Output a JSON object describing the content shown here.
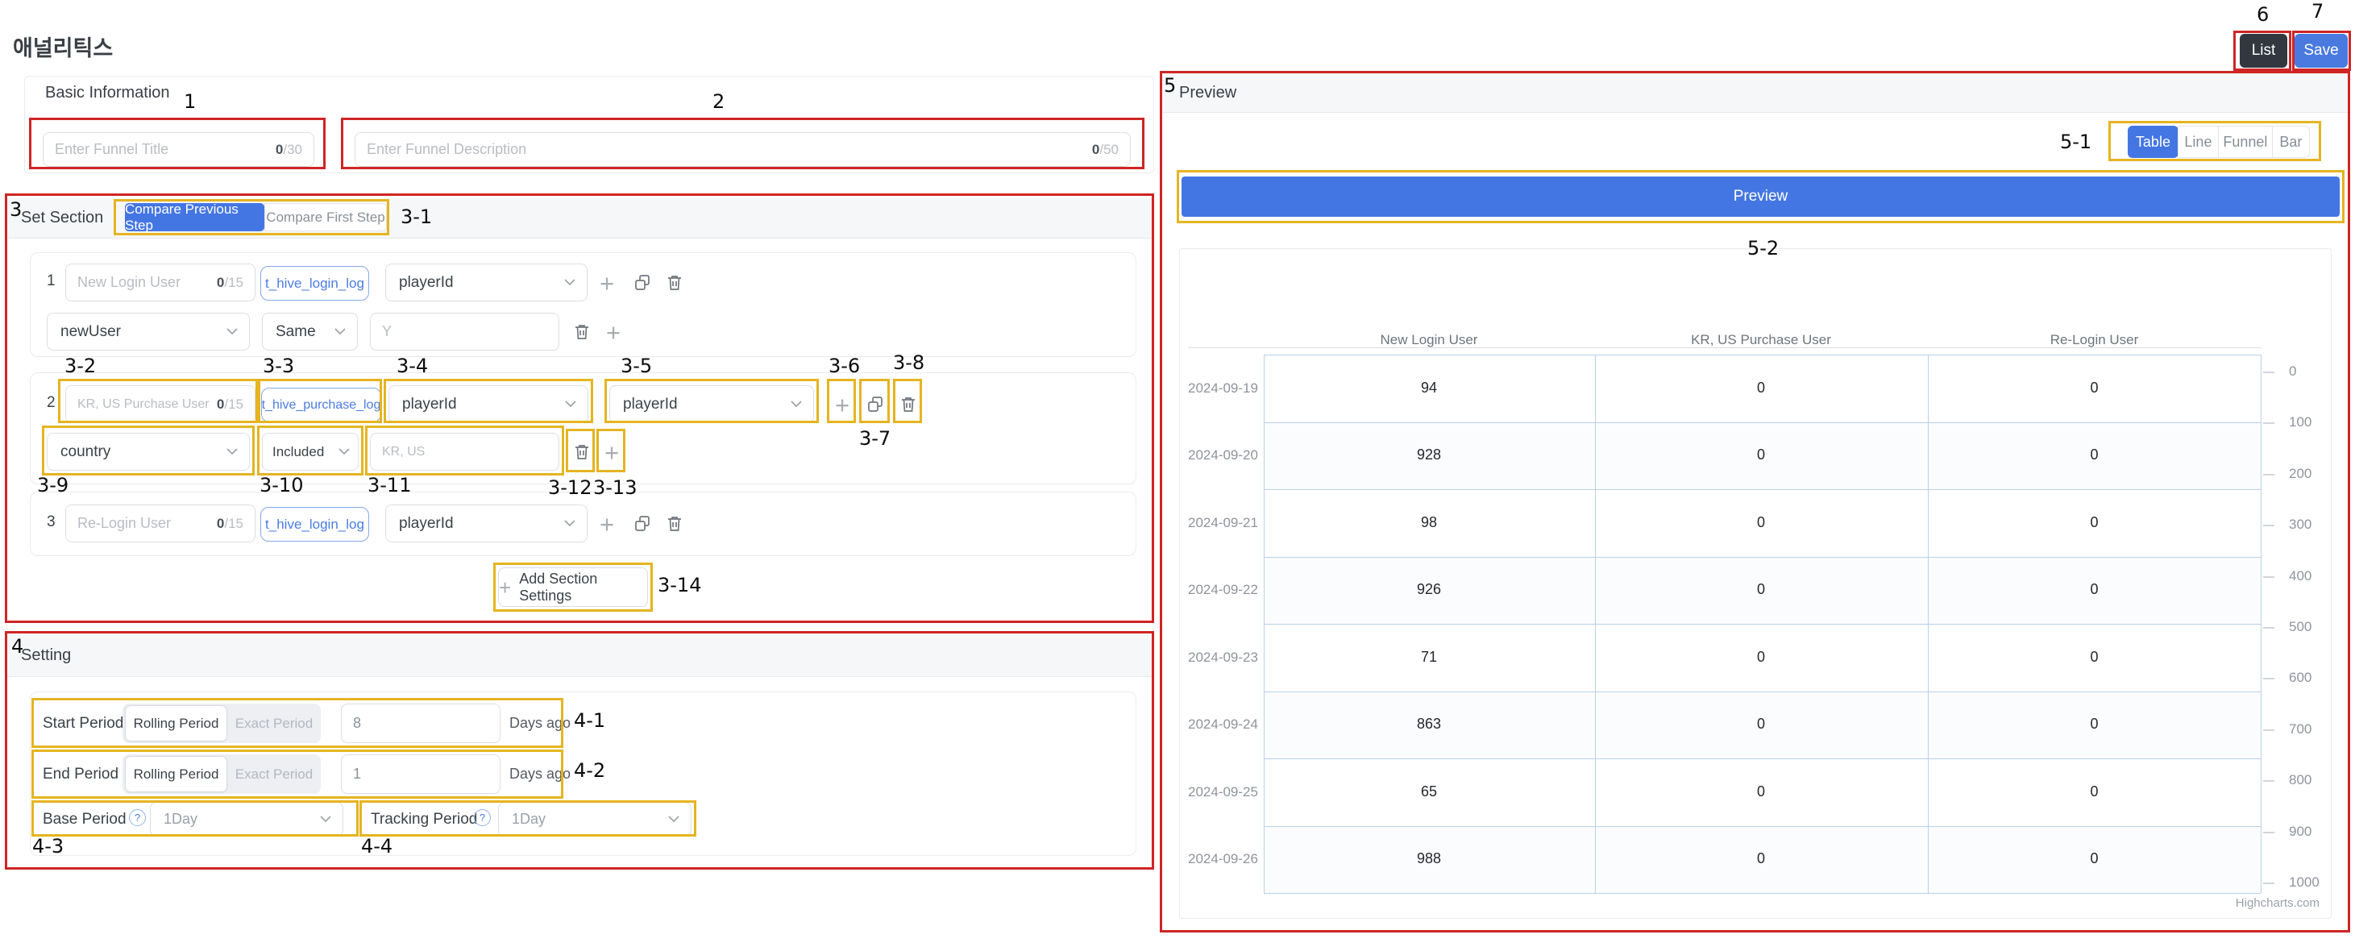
{
  "page_title": "애널리틱스",
  "topbar": {
    "list": "List",
    "save": "Save"
  },
  "basic_info": {
    "title": "Basic Information",
    "funnel_title": {
      "placeholder": "Enter Funnel Title",
      "count": "0",
      "max": "/30"
    },
    "funnel_desc": {
      "placeholder": "Enter Funnel Description",
      "count": "0",
      "max": "/50"
    }
  },
  "set_section": {
    "title": "Set Section",
    "tabs": [
      {
        "label": "Compare Previous Step",
        "active": true
      },
      {
        "label": "Compare First Step",
        "active": false
      }
    ],
    "steps": [
      {
        "num": "1",
        "name": "New Login User",
        "count": "0",
        "max": "/15",
        "table": "t_hive_login_log",
        "field": "playerId",
        "filter": {
          "field": "newUser",
          "op": "Same",
          "value": "Y"
        }
      },
      {
        "num": "2",
        "name": "KR, US Purchase User",
        "count": "0",
        "max": "/15",
        "table": "t_hive_purchase_log",
        "field": "playerId",
        "field2": "playerId",
        "filter": {
          "field": "country",
          "op": "Included",
          "value": "KR, US"
        }
      },
      {
        "num": "3",
        "name": "Re-Login User",
        "count": "0",
        "max": "/15",
        "table": "t_hive_login_log",
        "field": "playerId"
      }
    ],
    "add_button": "Add Section Settings"
  },
  "setting": {
    "title": "Setting",
    "start_period": {
      "label": "Start Period",
      "mode_on": "Rolling Period",
      "mode_off": "Exact Period",
      "value": "8",
      "suffix": "Days ago"
    },
    "end_period": {
      "label": "End Period",
      "mode_on": "Rolling Period",
      "mode_off": "Exact Period",
      "value": "1",
      "suffix": "Days ago"
    },
    "base_period": {
      "label": "Base Period",
      "value": "1Day"
    },
    "tracking_period": {
      "label": "Tracking Period",
      "value": "1Day"
    }
  },
  "preview": {
    "title": "Preview",
    "view_tabs": [
      "Table",
      "Line",
      "Funnel",
      "Bar"
    ],
    "active_view": "Table",
    "preview_button": "Preview"
  },
  "chart_data": {
    "type": "table",
    "categories": [
      "2024-09-19",
      "2024-09-20",
      "2024-09-21",
      "2024-09-22",
      "2024-09-23",
      "2024-09-24",
      "2024-09-25",
      "2024-09-26"
    ],
    "series": [
      {
        "name": "New Login User",
        "values": [
          94,
          928,
          98,
          926,
          71,
          863,
          65,
          988
        ]
      },
      {
        "name": "KR, US Purchase User",
        "values": [
          0,
          0,
          0,
          0,
          0,
          0,
          0,
          0
        ]
      },
      {
        "name": "Re-Login User",
        "values": [
          0,
          0,
          0,
          0,
          0,
          0,
          0,
          0
        ]
      }
    ],
    "y_axis_ticks": [
      0,
      100,
      200,
      300,
      400,
      500,
      600,
      700,
      800,
      900,
      1000
    ],
    "y_axis_range": [
      0,
      1000
    ],
    "credit": "Highcharts.com"
  },
  "annotations": [
    "1",
    "2",
    "3",
    "3-1",
    "3-2",
    "3-3",
    "3-4",
    "3-5",
    "3-6",
    "3-7",
    "3-8",
    "3-9",
    "3-10",
    "3-11",
    "3-12",
    "3-13",
    "3-14",
    "4",
    "4-1",
    "4-2",
    "4-3",
    "4-4",
    "5",
    "5-1",
    "5-2",
    "6",
    "7"
  ],
  "colors": {
    "primary_blue": "#4476e3",
    "save_blue": "#4a7ae0",
    "dark_button": "#33373f",
    "annotation_red": "#cf2525",
    "annotation_yellow": "#e5b420",
    "table_border_blue": "#b8d0ee"
  }
}
